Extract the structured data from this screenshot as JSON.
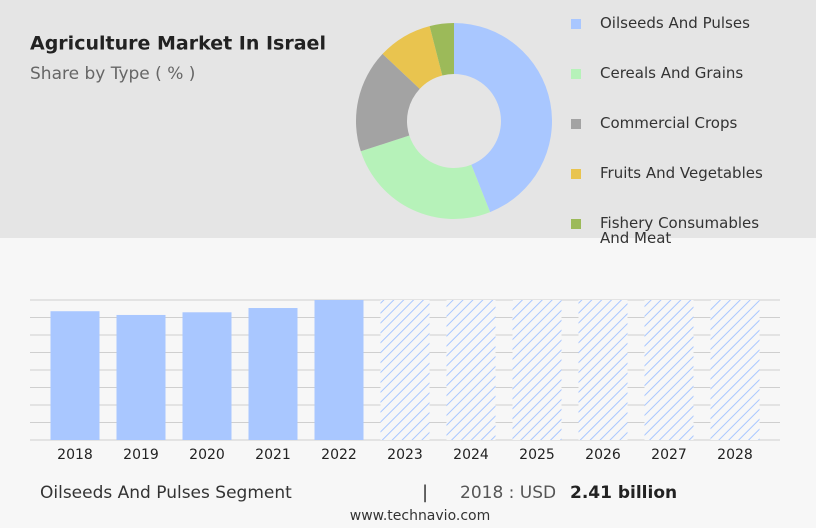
{
  "chart_data": [
    {
      "type": "donut",
      "title": "Agriculture Market In Israel",
      "subtitle": "Share by Type ( % )",
      "categories": [
        "Oilseeds And Pulses",
        "Cereals And Grains",
        "Commercial Crops",
        "Fruits And Vegetables",
        "Fishery Consumables And Meat"
      ],
      "values": [
        44,
        26,
        17,
        9,
        4
      ],
      "colors": [
        "#a9c7ff",
        "#b6f2b9",
        "#a3a3a3",
        "#e9c44f",
        "#9cba59"
      ]
    },
    {
      "type": "bar",
      "categories": [
        "2018",
        "2019",
        "2020",
        "2021",
        "2022",
        "2023",
        "2024",
        "2025",
        "2026",
        "2027",
        "2028"
      ],
      "values": [
        2.41,
        2.34,
        2.39,
        2.47,
        2.62,
        null,
        null,
        null,
        null,
        null,
        null
      ],
      "color": "#a9c7ff",
      "ylim": [
        0,
        2.62
      ],
      "grid": true
    }
  ],
  "footer": {
    "segment": "Oilseeds And Pulses Segment",
    "separator": "|",
    "year_label": "2018 : USD",
    "value": "2.41 billion",
    "source": "www.technavio.com"
  }
}
